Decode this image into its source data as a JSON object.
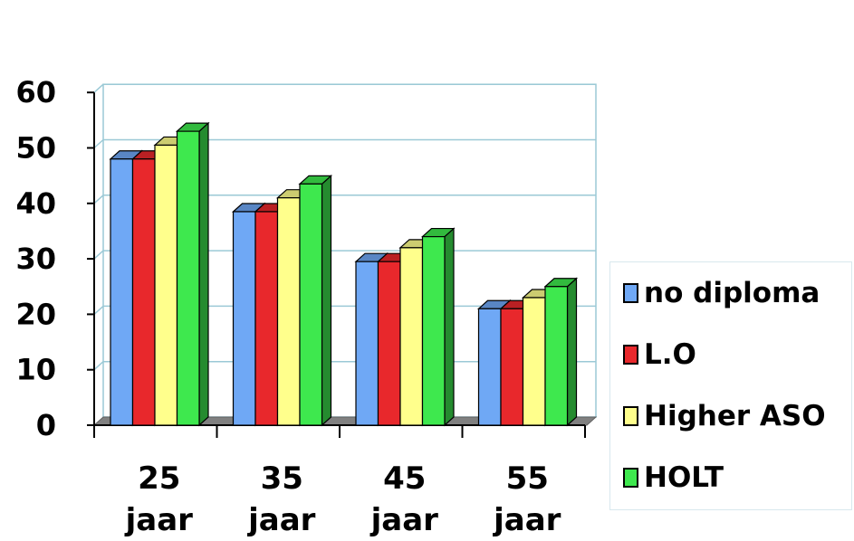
{
  "chart_data": {
    "type": "bar",
    "categories": [
      [
        "25",
        "jaar"
      ],
      [
        "35",
        "jaar"
      ],
      [
        "45",
        "jaar"
      ],
      [
        "55",
        "jaar"
      ]
    ],
    "series": [
      {
        "name": "no diploma",
        "values": [
          48,
          38.5,
          29.5,
          21
        ],
        "color": "#6fa8f5"
      },
      {
        "name": "L.O",
        "values": [
          48,
          38.5,
          29.5,
          21
        ],
        "color": "#e8282c"
      },
      {
        "name": "Higher ASO",
        "values": [
          50.5,
          41,
          32,
          23
        ],
        "color": "#ffff8c"
      },
      {
        "name": "HOLT",
        "values": [
          53,
          43.5,
          34,
          25
        ],
        "color": "#3ee84e"
      }
    ],
    "ylim": [
      0,
      60
    ],
    "yticks": [
      0,
      10,
      20,
      30,
      40,
      50,
      60
    ],
    "grid": true,
    "legend_position": "right",
    "style": "3d-clustered"
  }
}
